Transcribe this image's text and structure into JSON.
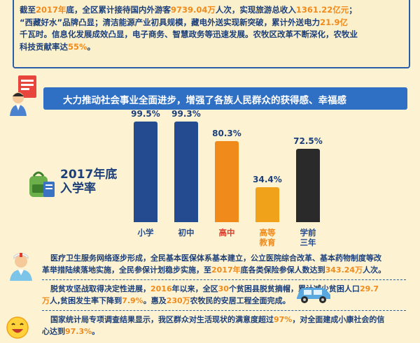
{
  "top": {
    "l1a": "截至",
    "l1b": "2017年",
    "l1c": "底，全区累计接待国内外游客",
    "l1d": "9739.04万",
    "l1e": "人次，实现旅游总收入",
    "l1f": "1361.22亿元",
    "l1g": "；",
    "l2a": "“西藏好水”品牌凸显；清洁能源产业初具规模，藏电外送实现新突破，累计外送电力",
    "l2b": "21.9亿",
    "l3a": "千瓦时。信息化发展成效凸显，电子商务、智慧政务等迅速发展。农牧区改革不断深化，农牧业",
    "l4a": "科技贡献率达",
    "l4b": "55%",
    "l4c": "。"
  },
  "section": {
    "title": "大力推动社会事业全面进步，增强了各族人民群众的获得感、幸福感"
  },
  "chart_data": {
    "type": "bar",
    "title": "2017年底入学率",
    "categories": [
      "小学",
      "初中",
      "高中",
      "高等教育",
      "学前三年"
    ],
    "category_lines": [
      [
        "小学"
      ],
      [
        "初中"
      ],
      [
        "高中"
      ],
      [
        "高等",
        "教育"
      ],
      [
        "学前",
        "三年"
      ]
    ],
    "values": [
      99.5,
      99.3,
      80.3,
      34.4,
      72.5
    ],
    "value_labels": [
      "99.5%",
      "99.3%",
      "80.3%",
      "34.4%",
      "72.5%"
    ],
    "bar_colors": [
      "#244a8f",
      "#244a8f",
      "#f08a1a",
      "#f0a21a",
      "#2a2a2a"
    ],
    "label_colors": [
      "#244a8f",
      "#244a8f",
      "#e03a2a",
      "#f08a1a",
      "#244a8f"
    ],
    "ylim": [
      0,
      100
    ]
  },
  "side_label": {
    "l1": "2017年底",
    "l2": "入学率"
  },
  "health": {
    "p1": "医疗卫生服务网络逐步形成，全民基本医保体系基本建立，公立医院综合改革、基本药物制度等改",
    "p2a": "革举措陆续落地实施，全民参保计划稳步实施，至",
    "p2b": "2017年",
    "p2c": "底各类保险参保人数达到",
    "p2d": "343.24万",
    "p2e": "人次。"
  },
  "poverty": {
    "p1a": "脱贫攻坚战取得决定性进展，",
    "p1b": "2016",
    "p1c": "年以来，全区",
    "p1d": "30",
    "p1e": "个贫困县脱贫摘帽，累计减少贫困人口",
    "p1f": "29.7",
    "p2a": "万",
    "p2b": "人,贫困发生率下降到",
    "p2c": "7.9%",
    "p2d": "。惠及",
    "p2e": "230万",
    "p2f": "农牧民的安居工程全面完成。"
  },
  "survey": {
    "p1a": "国家统计局专项调查结果显示，我区群众对生活现状的满意度超过",
    "p1b": "97%",
    "p1c": "，对全面建成小康社会的信",
    "p2a": "心达到",
    "p2b": "97.3%",
    "p2c": "。"
  }
}
